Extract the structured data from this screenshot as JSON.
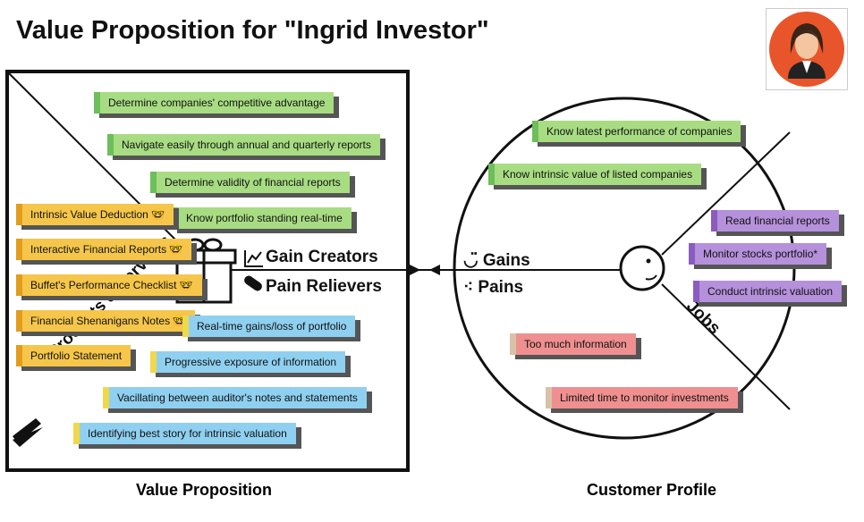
{
  "title": "Value Proposition for \"Ingrid Investor\"",
  "value_proposition": {
    "label": "Value Proposition",
    "gain_creators": {
      "label": "Gain Creators",
      "items": [
        "Determine companies' competitive advantage",
        "Navigate easily through annual and quarterly reports",
        "Determine validity of financial reports",
        "Know portfolio standing real-time"
      ]
    },
    "pain_relievers": {
      "label": "Pain Relievers",
      "items": [
        "Real-time gains/loss of portfolio",
        "Progressive exposure of information",
        "Vacillating between auditor's notes and statements",
        "Identifying best story for intrinsic valuation"
      ]
    },
    "products_services": {
      "label": "Products & Services",
      "items": [
        "Intrinsic Value Deduction 🤓",
        "Interactive Financial Reports 🤓",
        "Buffet's Performance Checklist 🤓",
        "Financial Shenanigans Notes 🤓",
        "Portfolio Statement"
      ]
    }
  },
  "customer_profile": {
    "label": "Customer Profile",
    "gains": {
      "label": "Gains",
      "items": [
        "Know latest performance of companies",
        "Know intrinsic value of listed companies"
      ]
    },
    "pains": {
      "label": "Pains",
      "items": [
        "Too much information",
        "Limited time to monitor investments"
      ]
    },
    "jobs": {
      "label": "Jobs",
      "items": [
        "Read financial reports",
        "Monitor stocks portfolio*",
        "Conduct intrinsic valuation"
      ]
    }
  }
}
